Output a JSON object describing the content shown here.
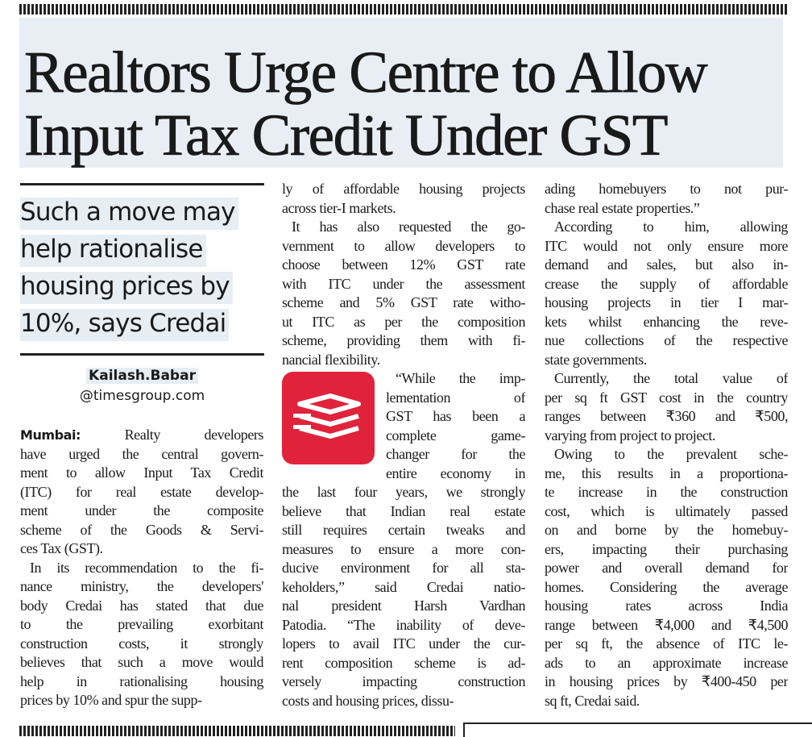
{
  "header": {
    "title_lines": [
      "Realtors Urge Centre to Allow",
      "Input Tax Credit Under GST"
    ]
  },
  "deck": {
    "lines": [
      "Such a move may",
      "help rationalise",
      "housing prices by",
      "10%, says Credai"
    ]
  },
  "byline": {
    "name": "Kailash.Babar",
    "handle": "@timesgroup.com"
  },
  "article": {
    "dateline": "Mumbai:",
    "columns": [
      {
        "paragraphs": [
          {
            "lines": [
              "Realty developers",
              "have urged the central govern-",
              "ment to allow Input Tax Credit",
              "(ITC) for real estate develop-",
              "ment under the composite",
              "scheme of the Goods & Servi-",
              "ces Tax (GST)."
            ]
          },
          {
            "lines": [
              "In its recommendation to the fi-",
              "nance ministry, the developers'",
              "body Credai has stated that due",
              "to the prevailing exorbitant",
              "construction costs, it strongly",
              "believes that such a move would",
              "help in rationalising housing",
              "prices by 10% and spur the supp-"
            ]
          }
        ]
      },
      {
        "paragraphs": [
          {
            "lines": [
              "ly of affordable housing projects",
              "across tier-I markets."
            ]
          },
          {
            "lines": [
              "It has also requested the go-",
              "vernment to allow developers to",
              "choose between 12% GST rate",
              "with ITC under the assessment",
              "scheme and 5% GST rate witho-",
              "ut ITC as per the composition",
              "scheme, providing them with fi-",
              "nancial flexibility."
            ]
          },
          {
            "lines": [
              "“While the imp-",
              "lementation of",
              "GST has been a",
              "complete game-",
              "changer for the",
              "entire economy in",
              "the last four years, we strongly",
              "believe that Indian real estate",
              "still requires certain tweaks and",
              "measures to ensure a more con-",
              "ducive environment for all sta-",
              "keholders,” said Credai natio-",
              "nal president Harsh Vardhan",
              "Patodia. “The inability of deve-",
              "lopers to avail ITC under the cur-",
              "rent composition scheme is ad-",
              "versely impacting construction",
              "costs and housing prices, dissu-"
            ]
          }
        ]
      },
      {
        "paragraphs": [
          {
            "lines": [
              "ading homebuyers to not pur-",
              "chase real estate properties.”"
            ]
          },
          {
            "lines": [
              "According to him, allowing",
              "ITC would not only ensure more",
              "demand and sales, but also in-",
              "crease the supply of affordable",
              "housing projects in tier I mar-",
              "kets whilst enhancing the reve-",
              "nue collections of the respective",
              "state governments."
            ]
          },
          {
            "lines": [
              "Currently, the total value of",
              "per sq ft GST cost in the country",
              "ranges between ₹360 and ₹500,",
              "varying from project to project."
            ]
          },
          {
            "lines": [
              "Owing to the prevalent sche-",
              "me, this results in a proportiona-",
              "te increase in the construction",
              "cost, which is ultimately passed",
              "on and borne by the homebuy-",
              "ers, impacting their purchasing",
              "power and overall demand for",
              "homes. Considering the average",
              "housing rates across India",
              "range between ₹4,000 and ₹4,500",
              "per sq ft, the absence of ITC le-",
              "ads to an approximate increase",
              "in housing prices by ₹400-450 per",
              "sq ft, Credai said."
            ]
          }
        ]
      }
    ]
  }
}
